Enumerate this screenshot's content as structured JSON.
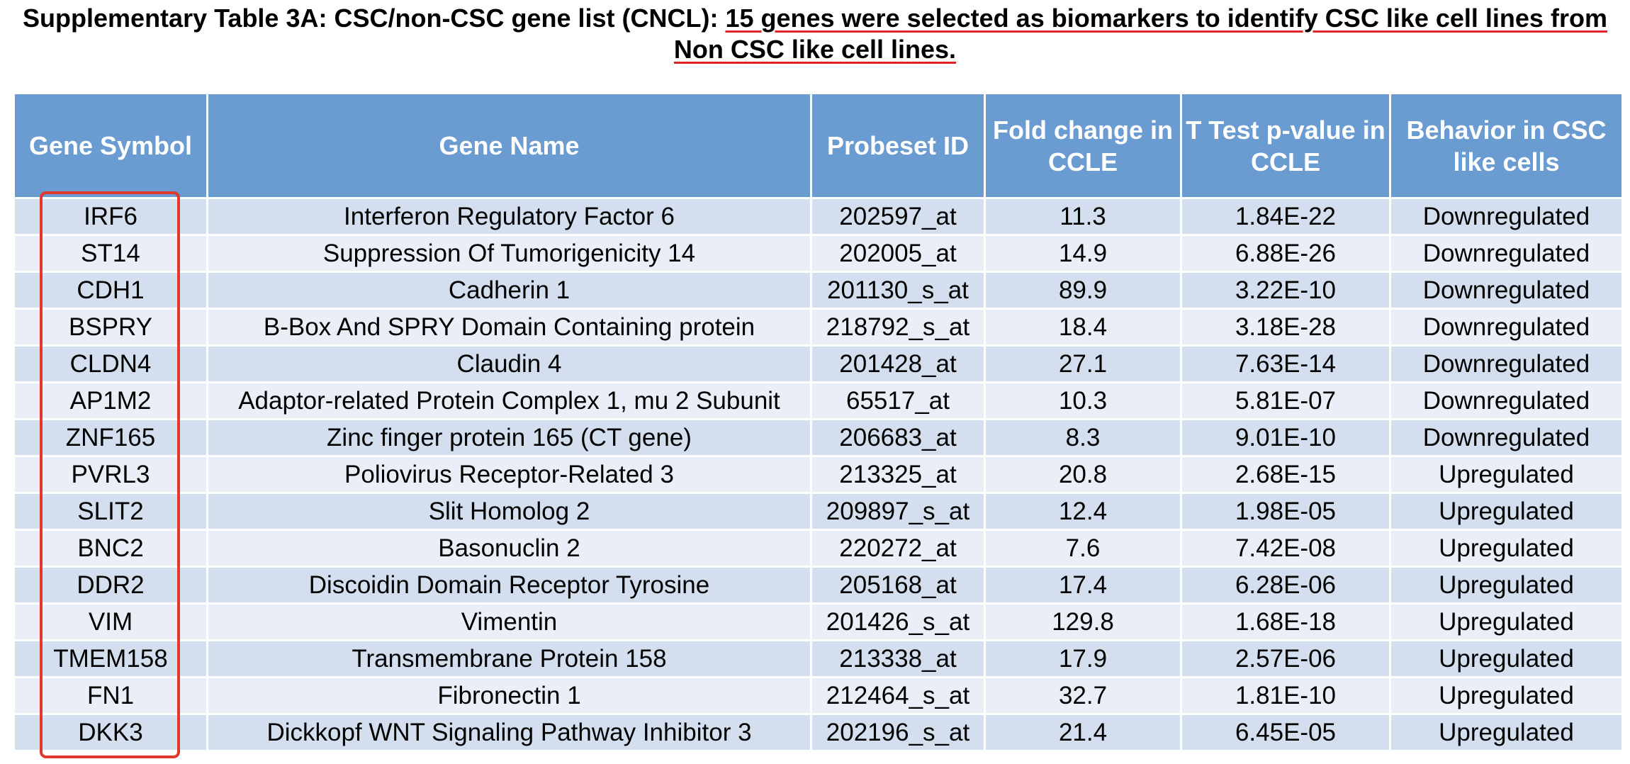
{
  "caption": {
    "lead": "Supplementary Table 3A: CSC/non-CSC gene list (CNCL): ",
    "highlight": "15 genes were selected as biomarkers to identify CSC like cell lines from Non CSC like cell lines."
  },
  "colors": {
    "header_bg": "#6a9bd1",
    "row_odd": "#d3dfee",
    "row_even": "#eaeff7",
    "highlight": "#e0392b"
  },
  "table": {
    "headers": {
      "gene_symbol": "Gene Symbol",
      "gene_name": "Gene Name",
      "probeset_id": "Probeset ID",
      "fold_change": "Fold change in CCLE",
      "p_value": "T Test p-value in CCLE",
      "behavior": "Behavior in CSC like cells"
    },
    "rows": [
      {
        "symbol": "IRF6",
        "name": "Interferon Regulatory Factor 6",
        "probeset": "202597_at",
        "fold": "11.3",
        "p": "1.84E-22",
        "behavior": "Downregulated"
      },
      {
        "symbol": "ST14",
        "name": "Suppression Of Tumorigenicity 14",
        "probeset": "202005_at",
        "fold": "14.9",
        "p": "6.88E-26",
        "behavior": "Downregulated"
      },
      {
        "symbol": "CDH1",
        "name": "Cadherin 1",
        "probeset": "201130_s_at",
        "fold": "89.9",
        "p": "3.22E-10",
        "behavior": "Downregulated"
      },
      {
        "symbol": "BSPRY",
        "name": "B-Box And SPRY Domain Containing protein",
        "probeset": "218792_s_at",
        "fold": "18.4",
        "p": "3.18E-28",
        "behavior": "Downregulated"
      },
      {
        "symbol": "CLDN4",
        "name": "Claudin 4",
        "probeset": "201428_at",
        "fold": "27.1",
        "p": "7.63E-14",
        "behavior": "Downregulated"
      },
      {
        "symbol": "AP1M2",
        "name": "Adaptor-related Protein Complex 1, mu 2 Subunit",
        "probeset": "65517_at",
        "fold": "10.3",
        "p": "5.81E-07",
        "behavior": "Downregulated"
      },
      {
        "symbol": "ZNF165",
        "name": "Zinc finger protein 165 (CT gene)",
        "probeset": "206683_at",
        "fold": "8.3",
        "p": "9.01E-10",
        "behavior": "Downregulated"
      },
      {
        "symbol": "PVRL3",
        "name": "Poliovirus Receptor-Related 3",
        "probeset": "213325_at",
        "fold": "20.8",
        "p": "2.68E-15",
        "behavior": "Upregulated"
      },
      {
        "symbol": "SLIT2",
        "name": "Slit Homolog 2",
        "probeset": "209897_s_at",
        "fold": "12.4",
        "p": "1.98E-05",
        "behavior": "Upregulated"
      },
      {
        "symbol": "BNC2",
        "name": "Basonuclin 2",
        "probeset": "220272_at",
        "fold": "7.6",
        "p": "7.42E-08",
        "behavior": "Upregulated"
      },
      {
        "symbol": "DDR2",
        "name": "Discoidin Domain Receptor Tyrosine",
        "probeset": "205168_at",
        "fold": "17.4",
        "p": "6.28E-06",
        "behavior": "Upregulated"
      },
      {
        "symbol": "VIM",
        "name": "Vimentin",
        "probeset": "201426_s_at",
        "fold": "129.8",
        "p": "1.68E-18",
        "behavior": "Upregulated"
      },
      {
        "symbol": "TMEM158",
        "name": "Transmembrane Protein 158",
        "probeset": "213338_at",
        "fold": "17.9",
        "p": "2.57E-06",
        "behavior": "Upregulated"
      },
      {
        "symbol": "FN1",
        "name": "Fibronectin 1",
        "probeset": "212464_s_at",
        "fold": "32.7",
        "p": "1.81E-10",
        "behavior": "Upregulated"
      },
      {
        "symbol": "DKK3",
        "name": "Dickkopf WNT Signaling Pathway Inhibitor 3",
        "probeset": "202196_s_at",
        "fold": "21.4",
        "p": "6.45E-05",
        "behavior": "Upregulated"
      }
    ]
  }
}
